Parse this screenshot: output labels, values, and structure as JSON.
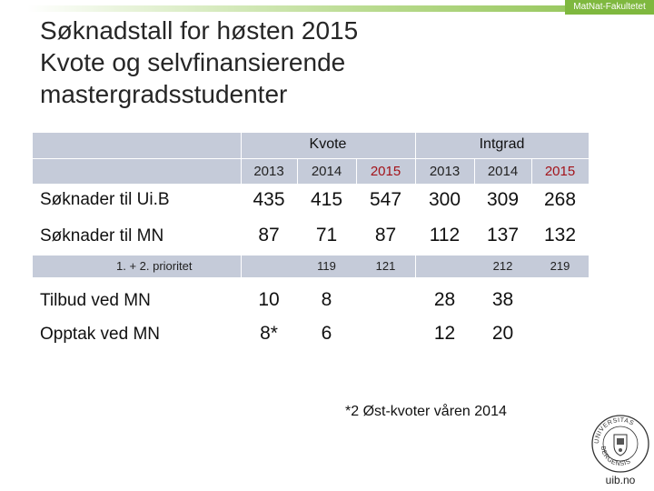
{
  "header": {
    "faculty": "MatNat-Fakultetet"
  },
  "title": {
    "line1": "Søknadstall for høsten 2015",
    "line2": "Kvote og selvfinansierende",
    "line3": "mastergradsstudenter"
  },
  "table": {
    "groups": [
      "Kvote",
      "Intgrad"
    ],
    "years": [
      "2013",
      "2014",
      "2015",
      "2013",
      "2014",
      "2015"
    ],
    "rows": [
      {
        "label": "Søknader til Ui.B",
        "values": [
          "435",
          "415",
          "547",
          "300",
          "309",
          "268"
        ]
      },
      {
        "label": "Søknader til MN",
        "values": [
          "87",
          "71",
          "87",
          "112",
          "137",
          "132"
        ]
      },
      {
        "label": "1. + 2. prioritet",
        "values": [
          "",
          "119",
          "121",
          "",
          "212",
          "219"
        ]
      },
      {
        "label": "Tilbud ved MN",
        "values": [
          "10",
          "8",
          "",
          "28",
          "38",
          ""
        ]
      },
      {
        "label": "Opptak ved MN",
        "values": [
          "8*",
          "6",
          "",
          "12",
          "20",
          ""
        ]
      }
    ]
  },
  "footnote": "*2 Øst-kvoter våren 2014",
  "logo": {
    "text": "UNIVERSITAS BERGENSIS",
    "url": "uib.no"
  },
  "colors": {
    "band": "#c5cbd9",
    "accent_green": "#7fb83f",
    "year_2015": "#a3131a"
  }
}
